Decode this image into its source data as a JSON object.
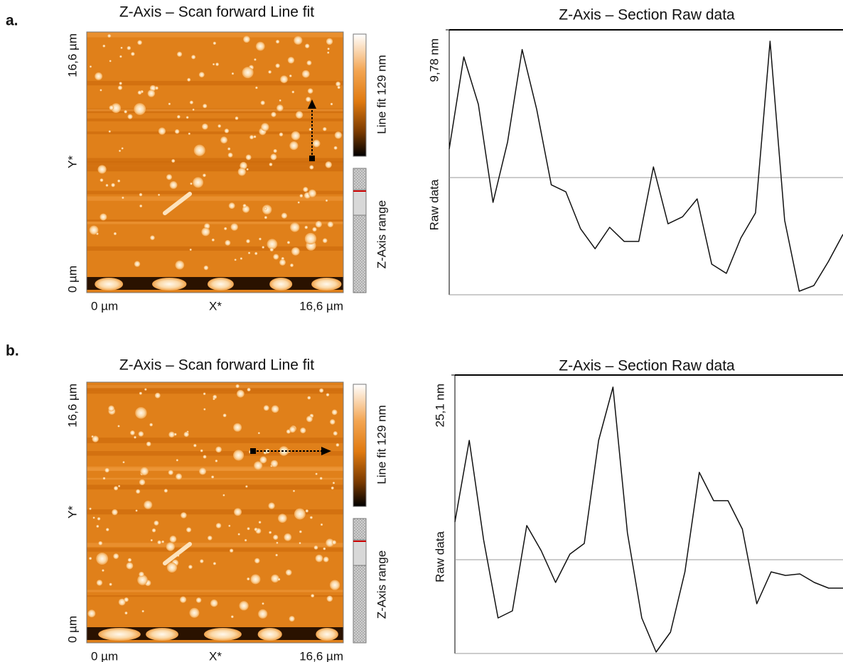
{
  "panel_labels": [
    "a.",
    "b."
  ],
  "images": [
    {
      "title": "Z-Axis – Scan forward Line fit",
      "colorbar_label": "Line fit 129 nm",
      "range_label": "Z-Axis range",
      "x_labels": [
        "0 µm",
        "X*",
        "16,6 µm"
      ],
      "y_labels": [
        "0 µm",
        "Y*",
        "16,6 µm"
      ]
    },
    {
      "title": "Z-Axis – Scan forward Line fit",
      "colorbar_label": "Line fit 129 nm",
      "range_label": "Z-Axis range",
      "x_labels": [
        "0 µm",
        "X*",
        "16,6 µm"
      ],
      "y_labels": [
        "0 µm",
        "Y*",
        "16,6 µm"
      ]
    }
  ],
  "chart_data": [
    {
      "type": "line",
      "title": "Z-Axis – Section  Raw data",
      "ylabel": "Raw data",
      "color": "#111111",
      "ylim": [
        0,
        9.78
      ],
      "yticks": [
        {
          "value": 9.78,
          "label": "9,78 nm"
        }
      ],
      "values": [
        5.38,
        8.78,
        7.03,
        3.41,
        5.64,
        9.05,
        6.84,
        4.06,
        3.8,
        2.44,
        1.7,
        2.49,
        1.97,
        1.97,
        4.72,
        2.62,
        2.88,
        3.54,
        1.13,
        0.79,
        2.1,
        3.02,
        9.36,
        2.75,
        0.13,
        0.34,
        1.23,
        2.23
      ]
    },
    {
      "type": "line",
      "title": "Z-Axis – Section  Raw data",
      "ylabel": "Raw data",
      "color": "#111111",
      "ylim": [
        0,
        25.1
      ],
      "yticks": [
        {
          "value": 25.1,
          "label": "25,1 nm"
        }
      ],
      "values": [
        11.85,
        19.21,
        10.24,
        3.2,
        3.84,
        11.53,
        9.28,
        6.4,
        8.96,
        9.92,
        19.21,
        24.01,
        10.88,
        3.2,
        0.13,
        1.92,
        7.36,
        16.33,
        13.77,
        13.77,
        11.21,
        4.48,
        7.36,
        7.04,
        7.17,
        6.4,
        5.89,
        5.89
      ]
    }
  ]
}
